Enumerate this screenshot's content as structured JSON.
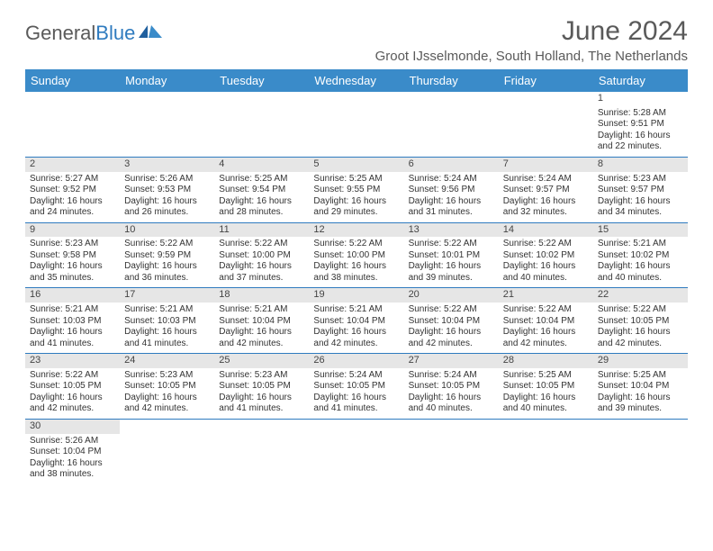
{
  "brand": {
    "text1": "General",
    "text2": "Blue"
  },
  "header": {
    "month_title": "June 2024",
    "location": "Groot IJsselmonde, South Holland, The Netherlands"
  },
  "colors": {
    "header_bg": "#3a8bc9",
    "header_fg": "#ffffff",
    "rule": "#2f7bbf",
    "daynum_bg": "#e6e6e6",
    "text": "#333333",
    "page_bg": "#ffffff"
  },
  "typography": {
    "title_fontsize": 30,
    "sub_fontsize": 15,
    "dow_fontsize": 13,
    "cell_fontsize": 10
  },
  "dow": [
    "Sunday",
    "Monday",
    "Tuesday",
    "Wednesday",
    "Thursday",
    "Friday",
    "Saturday"
  ],
  "weeks": [
    [
      null,
      null,
      null,
      null,
      null,
      null,
      {
        "n": "1",
        "sr": "Sunrise: 5:28 AM",
        "ss": "Sunset: 9:51 PM",
        "d1": "Daylight: 16 hours",
        "d2": "and 22 minutes."
      }
    ],
    [
      {
        "n": "2",
        "sr": "Sunrise: 5:27 AM",
        "ss": "Sunset: 9:52 PM",
        "d1": "Daylight: 16 hours",
        "d2": "and 24 minutes."
      },
      {
        "n": "3",
        "sr": "Sunrise: 5:26 AM",
        "ss": "Sunset: 9:53 PM",
        "d1": "Daylight: 16 hours",
        "d2": "and 26 minutes."
      },
      {
        "n": "4",
        "sr": "Sunrise: 5:25 AM",
        "ss": "Sunset: 9:54 PM",
        "d1": "Daylight: 16 hours",
        "d2": "and 28 minutes."
      },
      {
        "n": "5",
        "sr": "Sunrise: 5:25 AM",
        "ss": "Sunset: 9:55 PM",
        "d1": "Daylight: 16 hours",
        "d2": "and 29 minutes."
      },
      {
        "n": "6",
        "sr": "Sunrise: 5:24 AM",
        "ss": "Sunset: 9:56 PM",
        "d1": "Daylight: 16 hours",
        "d2": "and 31 minutes."
      },
      {
        "n": "7",
        "sr": "Sunrise: 5:24 AM",
        "ss": "Sunset: 9:57 PM",
        "d1": "Daylight: 16 hours",
        "d2": "and 32 minutes."
      },
      {
        "n": "8",
        "sr": "Sunrise: 5:23 AM",
        "ss": "Sunset: 9:57 PM",
        "d1": "Daylight: 16 hours",
        "d2": "and 34 minutes."
      }
    ],
    [
      {
        "n": "9",
        "sr": "Sunrise: 5:23 AM",
        "ss": "Sunset: 9:58 PM",
        "d1": "Daylight: 16 hours",
        "d2": "and 35 minutes."
      },
      {
        "n": "10",
        "sr": "Sunrise: 5:22 AM",
        "ss": "Sunset: 9:59 PM",
        "d1": "Daylight: 16 hours",
        "d2": "and 36 minutes."
      },
      {
        "n": "11",
        "sr": "Sunrise: 5:22 AM",
        "ss": "Sunset: 10:00 PM",
        "d1": "Daylight: 16 hours",
        "d2": "and 37 minutes."
      },
      {
        "n": "12",
        "sr": "Sunrise: 5:22 AM",
        "ss": "Sunset: 10:00 PM",
        "d1": "Daylight: 16 hours",
        "d2": "and 38 minutes."
      },
      {
        "n": "13",
        "sr": "Sunrise: 5:22 AM",
        "ss": "Sunset: 10:01 PM",
        "d1": "Daylight: 16 hours",
        "d2": "and 39 minutes."
      },
      {
        "n": "14",
        "sr": "Sunrise: 5:22 AM",
        "ss": "Sunset: 10:02 PM",
        "d1": "Daylight: 16 hours",
        "d2": "and 40 minutes."
      },
      {
        "n": "15",
        "sr": "Sunrise: 5:21 AM",
        "ss": "Sunset: 10:02 PM",
        "d1": "Daylight: 16 hours",
        "d2": "and 40 minutes."
      }
    ],
    [
      {
        "n": "16",
        "sr": "Sunrise: 5:21 AM",
        "ss": "Sunset: 10:03 PM",
        "d1": "Daylight: 16 hours",
        "d2": "and 41 minutes."
      },
      {
        "n": "17",
        "sr": "Sunrise: 5:21 AM",
        "ss": "Sunset: 10:03 PM",
        "d1": "Daylight: 16 hours",
        "d2": "and 41 minutes."
      },
      {
        "n": "18",
        "sr": "Sunrise: 5:21 AM",
        "ss": "Sunset: 10:04 PM",
        "d1": "Daylight: 16 hours",
        "d2": "and 42 minutes."
      },
      {
        "n": "19",
        "sr": "Sunrise: 5:21 AM",
        "ss": "Sunset: 10:04 PM",
        "d1": "Daylight: 16 hours",
        "d2": "and 42 minutes."
      },
      {
        "n": "20",
        "sr": "Sunrise: 5:22 AM",
        "ss": "Sunset: 10:04 PM",
        "d1": "Daylight: 16 hours",
        "d2": "and 42 minutes."
      },
      {
        "n": "21",
        "sr": "Sunrise: 5:22 AM",
        "ss": "Sunset: 10:04 PM",
        "d1": "Daylight: 16 hours",
        "d2": "and 42 minutes."
      },
      {
        "n": "22",
        "sr": "Sunrise: 5:22 AM",
        "ss": "Sunset: 10:05 PM",
        "d1": "Daylight: 16 hours",
        "d2": "and 42 minutes."
      }
    ],
    [
      {
        "n": "23",
        "sr": "Sunrise: 5:22 AM",
        "ss": "Sunset: 10:05 PM",
        "d1": "Daylight: 16 hours",
        "d2": "and 42 minutes."
      },
      {
        "n": "24",
        "sr": "Sunrise: 5:23 AM",
        "ss": "Sunset: 10:05 PM",
        "d1": "Daylight: 16 hours",
        "d2": "and 42 minutes."
      },
      {
        "n": "25",
        "sr": "Sunrise: 5:23 AM",
        "ss": "Sunset: 10:05 PM",
        "d1": "Daylight: 16 hours",
        "d2": "and 41 minutes."
      },
      {
        "n": "26",
        "sr": "Sunrise: 5:24 AM",
        "ss": "Sunset: 10:05 PM",
        "d1": "Daylight: 16 hours",
        "d2": "and 41 minutes."
      },
      {
        "n": "27",
        "sr": "Sunrise: 5:24 AM",
        "ss": "Sunset: 10:05 PM",
        "d1": "Daylight: 16 hours",
        "d2": "and 40 minutes."
      },
      {
        "n": "28",
        "sr": "Sunrise: 5:25 AM",
        "ss": "Sunset: 10:05 PM",
        "d1": "Daylight: 16 hours",
        "d2": "and 40 minutes."
      },
      {
        "n": "29",
        "sr": "Sunrise: 5:25 AM",
        "ss": "Sunset: 10:04 PM",
        "d1": "Daylight: 16 hours",
        "d2": "and 39 minutes."
      }
    ],
    [
      {
        "n": "30",
        "sr": "Sunrise: 5:26 AM",
        "ss": "Sunset: 10:04 PM",
        "d1": "Daylight: 16 hours",
        "d2": "and 38 minutes."
      },
      null,
      null,
      null,
      null,
      null,
      null
    ]
  ]
}
